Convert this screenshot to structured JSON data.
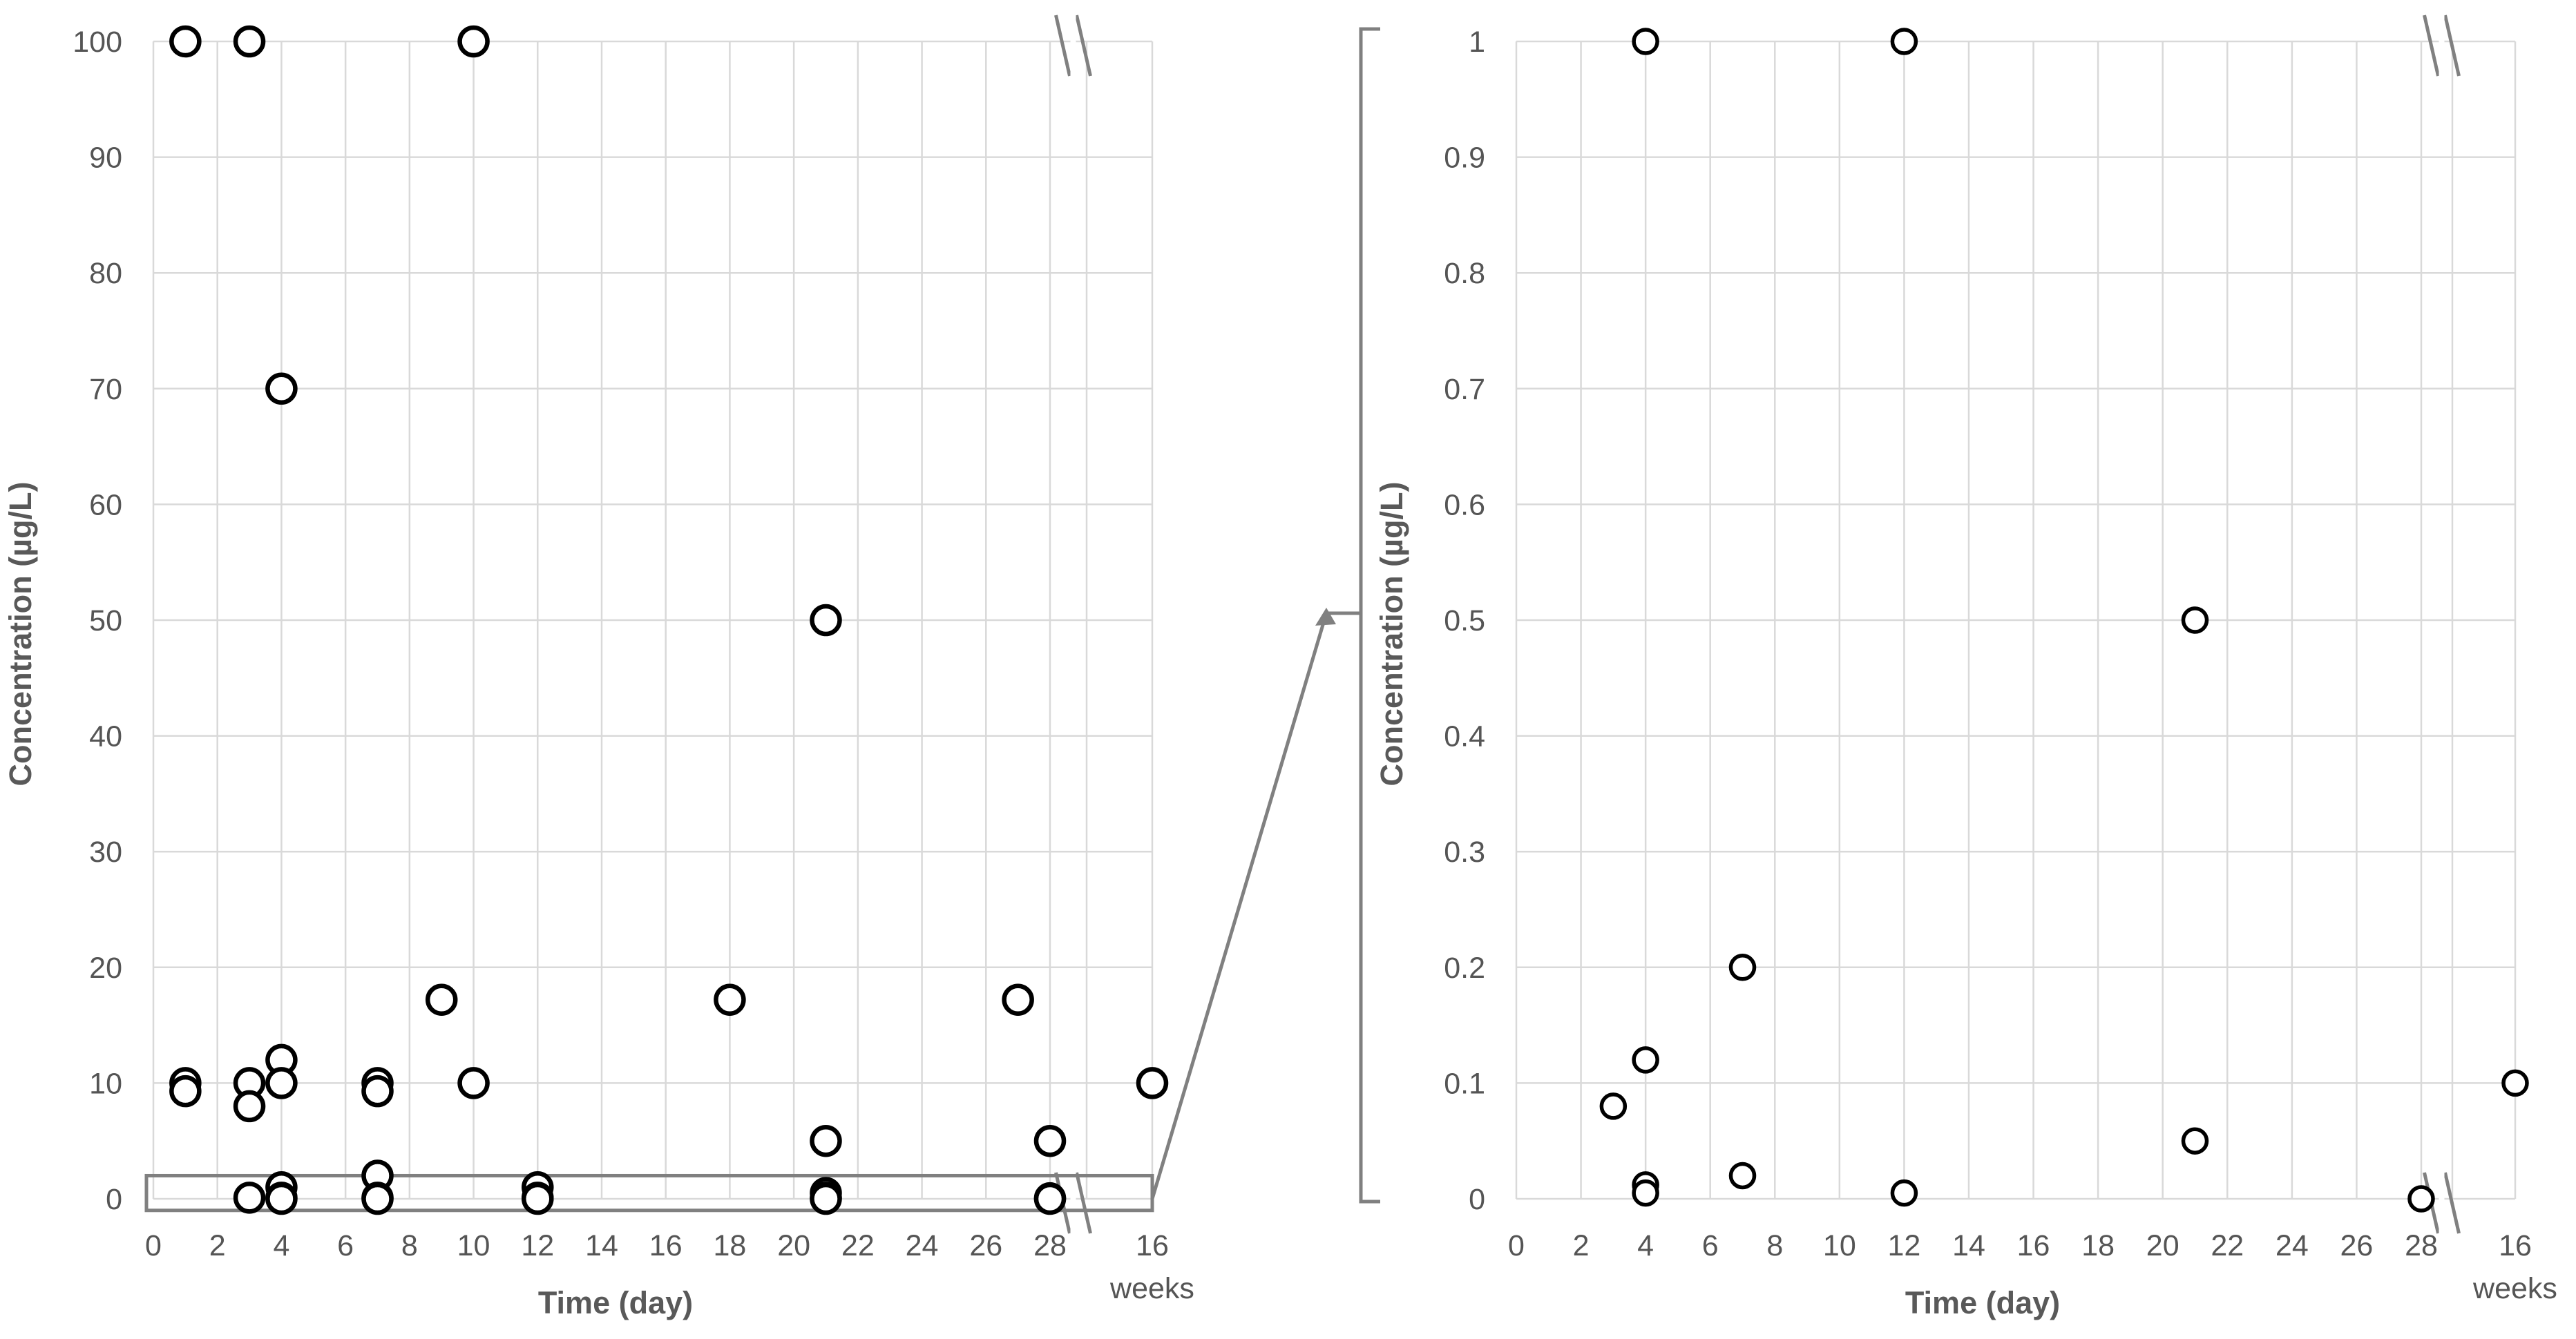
{
  "chart_data": [
    {
      "type": "scatter",
      "xlabel": "Time (day)",
      "ylabel": "Concentration (µg/L)",
      "ylim": [
        0,
        100
      ],
      "yticks": [
        0,
        10,
        20,
        30,
        40,
        50,
        60,
        70,
        80,
        90,
        100
      ],
      "xticks": [
        0,
        2,
        4,
        6,
        8,
        10,
        12,
        14,
        16,
        18,
        20,
        22,
        24,
        26,
        28
      ],
      "xlim": [
        0,
        28
      ],
      "break_tick": "16",
      "break_unit": "weeks",
      "grid": true,
      "points": [
        {
          "x": 1,
          "y": 100
        },
        {
          "x": 3,
          "y": 100
        },
        {
          "x": 10,
          "y": 100
        },
        {
          "x": 4,
          "y": 70
        },
        {
          "x": 21,
          "y": 50
        },
        {
          "x": 9,
          "y": 17.2
        },
        {
          "x": 18,
          "y": 17.2
        },
        {
          "x": 27,
          "y": 17.2
        },
        {
          "x": 4,
          "y": 12
        },
        {
          "x": 1,
          "y": 10
        },
        {
          "x": 1,
          "y": 9.3
        },
        {
          "x": 3,
          "y": 10
        },
        {
          "x": 3,
          "y": 8
        },
        {
          "x": 4,
          "y": 10
        },
        {
          "x": 7,
          "y": 10
        },
        {
          "x": 7,
          "y": 9.3
        },
        {
          "x": 10,
          "y": 10
        },
        {
          "x": 21,
          "y": 5
        },
        {
          "x": 28,
          "y": 5
        },
        {
          "x": 7,
          "y": 2
        },
        {
          "x": 4,
          "y": 1
        },
        {
          "x": 12,
          "y": 1
        },
        {
          "x": 21,
          "y": 0.5
        },
        {
          "x": 3,
          "y": 0.1
        },
        {
          "x": 4,
          "y": 0.1
        },
        {
          "x": 7,
          "y": 0.1
        },
        {
          "x": 12,
          "y": 0.1
        },
        {
          "x": 21,
          "y": 0.1
        },
        {
          "x": 28,
          "y": 0.05
        },
        {
          "x": 4,
          "y": 0
        },
        {
          "x": 7,
          "y": 0
        },
        {
          "x": 12,
          "y": 0
        },
        {
          "x": 21,
          "y": 0
        },
        {
          "x": 28,
          "y": 0
        }
      ],
      "break_points": [
        {
          "x": "16 weeks",
          "y": 10
        }
      ],
      "highlight_region": {
        "ymin": -1,
        "ymax": 2,
        "note": "range enlarged in right panel"
      }
    },
    {
      "type": "scatter",
      "xlabel": "Time (day)",
      "ylabel": "Concentration (µg/L)",
      "ylim": [
        0,
        1
      ],
      "yticks": [
        0,
        0.1,
        0.2,
        0.3,
        0.4,
        0.5,
        0.6,
        0.7,
        0.8,
        0.9,
        1
      ],
      "xticks": [
        0,
        2,
        4,
        6,
        8,
        10,
        12,
        14,
        16,
        18,
        20,
        22,
        24,
        26,
        28
      ],
      "xlim": [
        0,
        28
      ],
      "break_tick": "16",
      "break_unit": "weeks",
      "grid": true,
      "points": [
        {
          "x": 4,
          "y": 1
        },
        {
          "x": 12,
          "y": 1
        },
        {
          "x": 21,
          "y": 0.5
        },
        {
          "x": 7,
          "y": 0.2
        },
        {
          "x": 4,
          "y": 0.12
        },
        {
          "x": 3,
          "y": 0.08
        },
        {
          "x": 21,
          "y": 0.05
        },
        {
          "x": 7,
          "y": 0.02
        },
        {
          "x": 4,
          "y": 0.012
        },
        {
          "x": 4,
          "y": 0.005
        },
        {
          "x": 12,
          "y": 0.005
        },
        {
          "x": 28,
          "y": 0
        }
      ],
      "break_points": [
        {
          "x": "16 weeks",
          "y": 0.1
        }
      ]
    }
  ]
}
